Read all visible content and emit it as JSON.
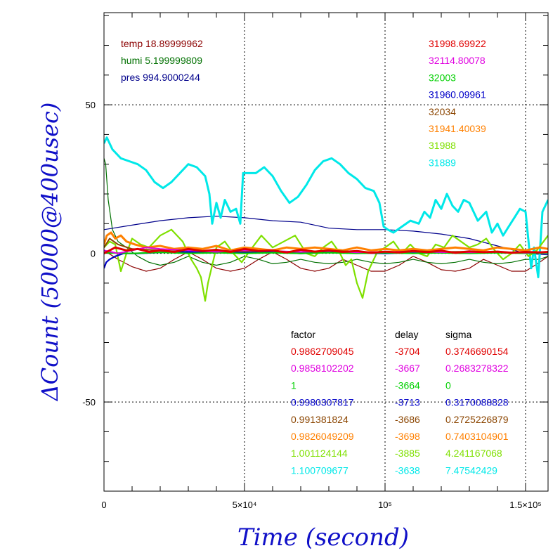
{
  "chart_data": {
    "type": "line",
    "xlabel": "Time (second)",
    "ylabel": "ΔCount (50000@400usec)",
    "xlim": [
      0,
      158000
    ],
    "ylim": [
      -80,
      81
    ],
    "grid": true,
    "xticks": [
      {
        "value": 0,
        "label": "0"
      },
      {
        "value": 50000,
        "label": "5×10⁴"
      },
      {
        "value": 100000,
        "label": "10⁵"
      },
      {
        "value": 150000,
        "label": "1.5×10⁵"
      }
    ],
    "yticks": [
      {
        "value": 50,
        "label": "50"
      },
      {
        "value": 0,
        "label": "0"
      },
      {
        "value": -50,
        "label": "-50"
      }
    ],
    "env": [
      {
        "name": "temp",
        "value": "18.89999962",
        "color": "#8b0000"
      },
      {
        "name": "humi",
        "value": "5.199999809",
        "color": "#007000"
      },
      {
        "name": "pres",
        "value": "994.9000244",
        "color": "#00008b"
      }
    ],
    "env_series": [
      {
        "name": "temp",
        "color": "#8b0000",
        "x": [
          0,
          5000,
          10000,
          15000,
          20000,
          25000,
          30000,
          35000,
          40000,
          45000,
          50000,
          55000,
          60000,
          65000,
          70000,
          75000,
          80000,
          85000,
          90000,
          95000,
          100000,
          105000,
          110000,
          115000,
          120000,
          125000,
          130000,
          135000,
          140000,
          145000,
          150000,
          155000,
          158000
        ],
        "y": [
          1,
          -2,
          -4.5,
          -6,
          -5,
          -2,
          0.5,
          -2,
          -5,
          -6,
          -5,
          -2,
          0.5,
          -2,
          -5,
          -6,
          -5,
          -2,
          -4,
          -6,
          -6,
          -4,
          -1,
          -3,
          -5.5,
          -6,
          -5,
          -2,
          -4,
          -6,
          -6,
          -3,
          -1
        ]
      },
      {
        "name": "humi",
        "color": "#007000",
        "x": [
          0,
          600,
          1500,
          3000,
          5000,
          8000,
          12000,
          16000,
          20000,
          25000,
          30000,
          35000,
          40000,
          45000,
          50000,
          55000,
          60000,
          65000,
          70000,
          75000,
          80000,
          85000,
          90000,
          95000,
          100000,
          105000,
          110000,
          115000,
          120000,
          125000,
          130000,
          135000,
          140000,
          145000,
          150000,
          155000,
          158000
        ],
        "y": [
          32,
          30,
          18,
          8,
          4,
          2,
          -1,
          -3,
          -4,
          -3,
          -1,
          -3,
          -4,
          -3,
          -1,
          -2,
          -3.5,
          -3,
          -2,
          -3,
          -3.5,
          -3,
          -2,
          -3,
          -3.5,
          -3,
          -2,
          -3,
          -3.5,
          -3,
          -2,
          -3,
          -3.5,
          -3,
          -2,
          -2,
          -1
        ]
      },
      {
        "name": "pres",
        "color": "#00008b",
        "x": [
          0,
          10000,
          20000,
          30000,
          40000,
          50000,
          60000,
          70000,
          80000,
          90000,
          100000,
          110000,
          120000,
          130000,
          140000,
          150000,
          158000
        ],
        "y": [
          8,
          9.5,
          11,
          12,
          12.5,
          12,
          11,
          10.5,
          8.5,
          8,
          8,
          7.5,
          6.5,
          5,
          2.5,
          0,
          -0.5
        ]
      }
    ],
    "ref_values": [
      {
        "value": "31998.69922",
        "color": "#e00000"
      },
      {
        "value": "32114.80078",
        "color": "#e000e0"
      },
      {
        "value": "32003",
        "color": "#00d000"
      },
      {
        "value": "31960.09961",
        "color": "#0000c8"
      },
      {
        "value": "32034",
        "color": "#8b4500"
      },
      {
        "value": "31941.40039",
        "color": "#ff8000"
      },
      {
        "value": "31988",
        "color": "#7fe000"
      },
      {
        "value": "31889",
        "color": "#00e8e8"
      }
    ],
    "table": {
      "headers": [
        "factor",
        "delay",
        "sigma"
      ],
      "rows": [
        {
          "factor": "0.9862709045",
          "delay": "-3704",
          "sigma": "0.3746690154",
          "color": "#e00000"
        },
        {
          "factor": "0.9858102202",
          "delay": "-3667",
          "sigma": "0.2683278322",
          "color": "#e000e0"
        },
        {
          "factor": "1",
          "delay": "-3664",
          "sigma": "0",
          "color": "#00d000"
        },
        {
          "factor": "0.9980307817",
          "delay": "-3713",
          "sigma": "0.3170088828",
          "color": "#0000c8"
        },
        {
          "factor": "0.991381824",
          "delay": "-3686",
          "sigma": "0.2725226879",
          "color": "#8b4500"
        },
        {
          "factor": "0.9826049209",
          "delay": "-3698",
          "sigma": "0.7403104901",
          "color": "#ff8000"
        },
        {
          "factor": "1.001124144",
          "delay": "-3885",
          "sigma": "4.241167068",
          "color": "#7fe000"
        },
        {
          "factor": "1.100709677",
          "delay": "-3638",
          "sigma": "7.47542429",
          "color": "#00e8e8"
        }
      ]
    },
    "series": [
      {
        "color": "#00e8e8",
        "x": [
          0,
          1000,
          3000,
          6000,
          9000,
          12000,
          15000,
          18000,
          21000,
          24000,
          27000,
          30000,
          33000,
          36000,
          37500,
          38500,
          40000,
          41500,
          43000,
          45000,
          47000,
          48500,
          49500,
          51000,
          54000,
          57000,
          60000,
          63000,
          66000,
          69000,
          72000,
          75000,
          78000,
          81000,
          84000,
          87000,
          90000,
          93000,
          96000,
          98000,
          99500,
          101000,
          103000,
          106000,
          109000,
          112000,
          114000,
          116000,
          118000,
          120000,
          122000,
          124000,
          126000,
          128000,
          130000,
          133000,
          136000,
          138000,
          140000,
          142000,
          144000,
          146000,
          148000,
          150000,
          152000,
          153000,
          154500,
          156000,
          158000
        ],
        "y": [
          37,
          39,
          35,
          32,
          31,
          30,
          28,
          24,
          22,
          24,
          27,
          30,
          29,
          26,
          20,
          10,
          17,
          12,
          18,
          14,
          15,
          10,
          27,
          27,
          27,
          29,
          26,
          21,
          17,
          19,
          23,
          28,
          31,
          32,
          30,
          27,
          25,
          22,
          21,
          17,
          9,
          8,
          7,
          9,
          11,
          10,
          14,
          12,
          18,
          15,
          20,
          16,
          14,
          18,
          17,
          11,
          14,
          7,
          10,
          6,
          9,
          12,
          15,
          14,
          -5,
          2,
          -8,
          14,
          18
        ]
      },
      {
        "color": "#7fe000",
        "x": [
          0,
          2000,
          4000,
          6000,
          8000,
          10000,
          13000,
          16000,
          20000,
          24000,
          28000,
          31000,
          33000,
          34500,
          36000,
          37000,
          38500,
          40000,
          43000,
          46000,
          49000,
          52000,
          56000,
          60000,
          64000,
          68000,
          72000,
          75000,
          78000,
          81000,
          84000,
          86000,
          88000,
          90000,
          92000,
          94000,
          97000,
          100000,
          103000,
          106000,
          109000,
          112000,
          115000,
          118000,
          121000,
          124000,
          127000,
          130000,
          133000,
          136000,
          139000,
          142000,
          145000,
          148000,
          151000,
          154000,
          158000
        ],
        "y": [
          2,
          4,
          3,
          -6,
          0,
          5,
          3,
          2,
          6,
          8,
          4,
          -2,
          -5,
          -8,
          -16,
          -10,
          -4,
          2,
          4,
          0,
          -3,
          1,
          6,
          2,
          4,
          6,
          0,
          -1,
          2,
          4,
          0,
          -4,
          -2,
          -10,
          -15,
          -6,
          0,
          2,
          4,
          0,
          3,
          0,
          -1,
          3,
          2,
          6,
          4,
          2,
          3,
          5,
          1,
          -2,
          0,
          3,
          -1,
          1,
          6
        ]
      },
      {
        "color": "#ff8000",
        "x": [
          0,
          1000,
          2500,
          4000,
          6000,
          8000,
          11000,
          15000,
          20000,
          25000,
          30000,
          35000,
          40000,
          45000,
          50000,
          55000,
          60000,
          65000,
          70000,
          75000,
          80000,
          85000,
          90000,
          95000,
          100000,
          105000,
          110000,
          115000,
          120000,
          125000,
          130000,
          135000,
          140000,
          145000,
          150000,
          155000,
          158000
        ],
        "y": [
          3,
          6,
          7,
          5,
          6,
          4,
          3,
          2,
          2.5,
          1.5,
          2,
          1.5,
          2.5,
          1,
          2,
          1.5,
          1,
          2,
          1.5,
          2,
          1.5,
          1,
          2,
          1,
          1.5,
          1,
          1.5,
          1,
          1.5,
          2,
          1.5,
          1,
          2,
          1.5,
          1,
          2,
          1.5
        ]
      },
      {
        "color": "#8b4500",
        "x": [
          0,
          2000,
          5000,
          10000,
          20000,
          30000,
          40000,
          50000,
          60000,
          70000,
          80000,
          90000,
          100000,
          110000,
          120000,
          130000,
          140000,
          150000,
          158000
        ],
        "y": [
          2,
          5,
          3,
          1.5,
          1,
          0.5,
          1,
          0.5,
          0.8,
          0.4,
          1,
          0.5,
          0.3,
          0.8,
          0.5,
          0.6,
          0.4,
          0.3,
          0.5
        ]
      },
      {
        "color": "#0000c8",
        "x": [
          0,
          800,
          2000,
          4000,
          7000,
          12000,
          20000,
          30000,
          40000,
          50000,
          60000,
          70000,
          80000,
          90000,
          100000,
          110000,
          120000,
          130000,
          140000,
          150000,
          158000
        ],
        "y": [
          -5,
          -3,
          -2,
          -1,
          0,
          0,
          0.3,
          0.5,
          0.5,
          0.2,
          0.4,
          0,
          0.3,
          0.2,
          0,
          0.3,
          0.2,
          0.1,
          0.4,
          0.2,
          0.1
        ]
      },
      {
        "color": "#00d000",
        "x": [
          0,
          10000,
          20000,
          30000,
          40000,
          50000,
          60000,
          70000,
          80000,
          90000,
          100000,
          110000,
          120000,
          130000,
          140000,
          150000,
          158000
        ],
        "y": [
          0.2,
          0,
          0.3,
          0,
          0.2,
          0,
          0.2,
          0,
          0.2,
          0,
          0.2,
          0,
          0.2,
          0,
          0.2,
          0,
          0.2
        ]
      },
      {
        "color": "#e000e0",
        "x": [
          0,
          5000,
          10000,
          15000,
          20000,
          30000,
          40000,
          50000,
          60000,
          70000,
          80000,
          90000,
          100000,
          110000,
          120000,
          130000,
          140000,
          150000,
          158000
        ],
        "y": [
          1,
          0,
          1,
          2,
          1.5,
          1,
          0.5,
          1,
          0.8,
          0.5,
          0.8,
          0.3,
          0.5,
          0.6,
          0.4,
          0.3,
          0.5,
          0.2,
          0.4
        ]
      },
      {
        "color": "#e00000",
        "x": [
          0,
          4000,
          8000,
          12000,
          16000,
          20000,
          25000,
          30000,
          35000,
          40000,
          45000,
          50000,
          55000,
          60000,
          65000,
          70000,
          75000,
          80000,
          85000,
          90000,
          95000,
          100000,
          105000,
          110000,
          115000,
          120000,
          125000,
          130000,
          135000,
          140000,
          145000,
          150000,
          155000,
          158000
        ],
        "y": [
          0,
          2,
          1,
          1.5,
          0.5,
          1,
          0.5,
          1.5,
          0.8,
          1.2,
          0.5,
          1.5,
          0.8,
          1,
          0.3,
          1.2,
          0.6,
          1,
          0.5,
          0.8,
          0.2,
          0.6,
          0.3,
          0.8,
          0.4,
          0.9,
          0.2,
          0.7,
          0.4,
          0.6,
          0.2,
          0.5,
          0.3,
          0.5
        ]
      }
    ]
  }
}
